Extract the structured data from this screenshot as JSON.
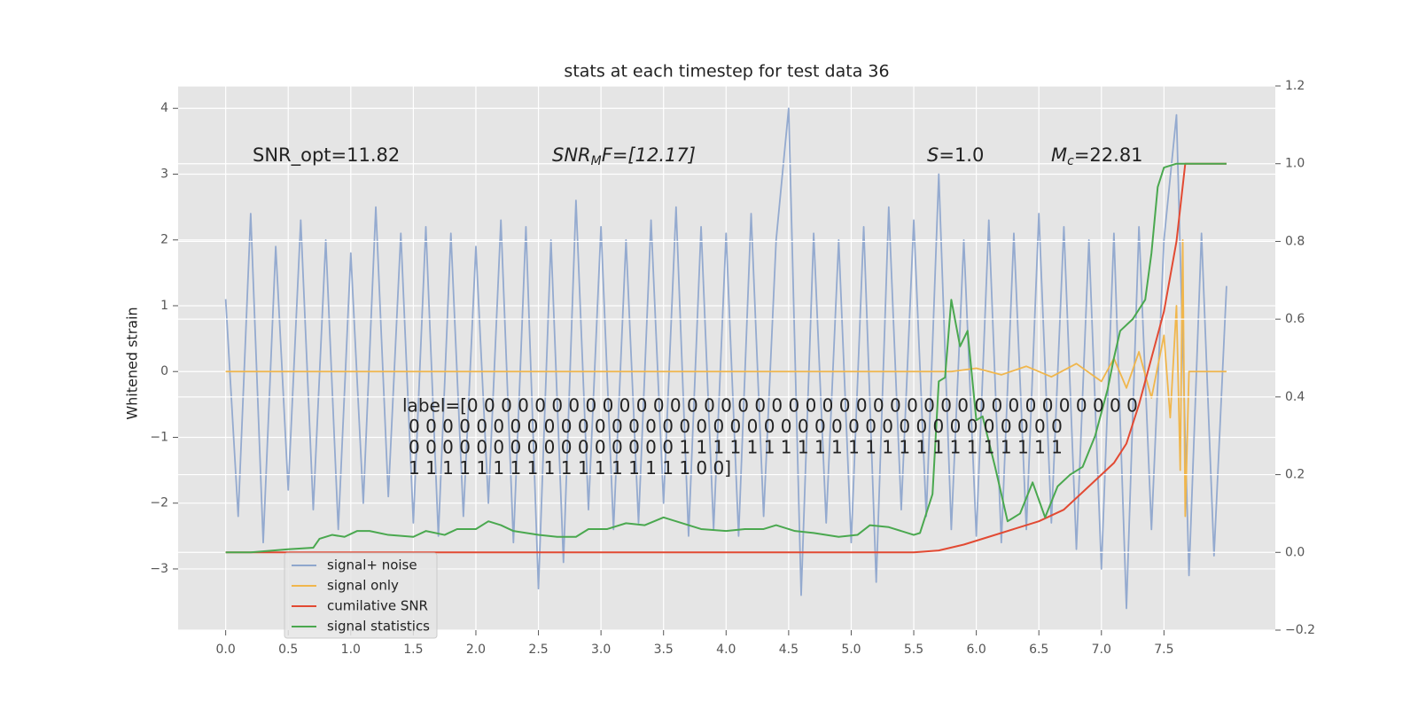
{
  "chart_data": {
    "type": "line",
    "title": "stats at each timestep for test data 36",
    "y_label": "Whitened strain",
    "grid": true,
    "legend": "lower left",
    "xlim": [
      -0.38,
      8.39
    ],
    "xticks": [
      {
        "value": 0,
        "label": "0.0"
      },
      0.5,
      {
        "value": 1,
        "label": "1.0"
      },
      1.5,
      {
        "value": 2,
        "label": "2.0"
      },
      2.5,
      {
        "value": 3,
        "label": "3.0"
      },
      3.5,
      {
        "value": 4,
        "label": "4.0"
      },
      4.5,
      {
        "value": 5,
        "label": "5.0"
      },
      5.5,
      {
        "value": 6,
        "label": "6.0"
      },
      6.5,
      {
        "value": 7,
        "label": "7.0"
      },
      7.5
    ],
    "ylim": [
      -3.93,
      4.34
    ],
    "yticks": [
      {
        "value": -3,
        "label": "−3"
      },
      {
        "value": -2,
        "label": "−2"
      },
      {
        "value": -1,
        "label": "−1"
      },
      0,
      1,
      2,
      3,
      4
    ],
    "y2lim": [
      -0.2,
      1.2
    ],
    "y2ticks": [
      {
        "value": -0.2,
        "label": "−0.2"
      },
      {
        "value": 0,
        "label": "0.0"
      },
      0.2,
      0.4,
      0.6,
      0.8,
      {
        "value": 1,
        "label": "1.0"
      },
      1.2
    ],
    "annotations": {
      "snr_opt": "SNR_opt=11.82",
      "snr_mf": {
        "base": "SNR",
        "sub": "M",
        "rest": "F=[12.17]"
      },
      "s": {
        "base": "S",
        "rest": "=1.0"
      },
      "m_c": {
        "base": "M",
        "sub": "c",
        "rest": "=22.81"
      },
      "label_lines": [
        "label=[0 0 0 0 0 0 0 0 0 0 0 0 0 0 0 0 0 0 0 0 0 0 0 0 0 0 0 0 0 0 0 0 0 0 0 0 0 0 0 0",
        "0 0 0 0 0 0 0 0 0 0 0 0 0 0 0 0 0 0 0 0 0 0 0 0 0 0 0 0 0 0 0 0 0 0 0 0 0 0 0",
        "0 0 0 0 0 0 0 0 0 0 0 0 0 0 0 0 1 1 1 1 1 1 1 1 1 1 1 1 1 1 1 1 1 1 1 1 1 1 1",
        "1 1 1 1 1 1 1 1 1 1 1 1 1 1 1 1 1 0 0]"
      ]
    },
    "series": [
      {
        "name": "signal+ noise",
        "color": "#8fa7cd",
        "axis": "y",
        "x": [
          0.0,
          0.1,
          0.2,
          0.3,
          0.4,
          0.5,
          0.6,
          0.7,
          0.8,
          0.9,
          1.0,
          1.1,
          1.2,
          1.3,
          1.4,
          1.5,
          1.6,
          1.7,
          1.8,
          1.9,
          2.0,
          2.1,
          2.2,
          2.3,
          2.4,
          2.5,
          2.6,
          2.7,
          2.8,
          2.9,
          3.0,
          3.1,
          3.2,
          3.3,
          3.4,
          3.5,
          3.6,
          3.7,
          3.8,
          3.9,
          4.0,
          4.1,
          4.2,
          4.3,
          4.4,
          4.5,
          4.6,
          4.7,
          4.8,
          4.9,
          5.0,
          5.1,
          5.2,
          5.3,
          5.4,
          5.5,
          5.6,
          5.7,
          5.8,
          5.9,
          6.0,
          6.1,
          6.2,
          6.3,
          6.4,
          6.5,
          6.6,
          6.7,
          6.8,
          6.9,
          7.0,
          7.1,
          7.2,
          7.3,
          7.4,
          7.5,
          7.6,
          7.7,
          7.8,
          7.9,
          8.0
        ],
        "values": [
          1.1,
          -2.2,
          2.4,
          -2.6,
          1.9,
          -1.8,
          2.3,
          -2.1,
          2.0,
          -2.4,
          1.8,
          -2.0,
          2.5,
          -1.9,
          2.1,
          -2.3,
          2.2,
          -2.5,
          2.1,
          -2.2,
          1.9,
          -2.0,
          2.3,
          -2.6,
          2.2,
          -3.3,
          2.0,
          -2.9,
          2.6,
          -2.1,
          2.2,
          -2.4,
          2.0,
          -2.3,
          2.3,
          -2.0,
          2.5,
          -2.5,
          2.2,
          -2.4,
          2.1,
          -2.5,
          2.4,
          -2.2,
          2.0,
          4.0,
          -3.4,
          2.1,
          -2.3,
          2.0,
          -2.6,
          2.2,
          -3.2,
          2.5,
          -2.1,
          2.3,
          -2.2,
          3.0,
          -2.4,
          2.0,
          -2.5,
          2.3,
          -2.6,
          2.1,
          -2.4,
          2.4,
          -2.3,
          2.2,
          -2.7,
          2.0,
          -3.0,
          2.1,
          -3.6,
          2.2,
          -2.4,
          2.0,
          3.9,
          -3.1,
          2.1,
          -2.8,
          1.3
        ]
      },
      {
        "name": "signal only",
        "color": "#f0b64c",
        "axis": "y",
        "x": [
          0,
          5.8,
          6.0,
          6.2,
          6.4,
          6.6,
          6.8,
          7.0,
          7.1,
          7.2,
          7.3,
          7.4,
          7.5,
          7.55,
          7.6,
          7.63,
          7.65,
          7.67,
          7.7,
          8.0
        ],
        "values": [
          0,
          0,
          0.05,
          -0.05,
          0.08,
          -0.08,
          0.12,
          -0.15,
          0.2,
          -0.25,
          0.3,
          -0.4,
          0.55,
          -0.7,
          1.0,
          -1.5,
          2.0,
          -2.2,
          0,
          0
        ]
      },
      {
        "name": "cumilative SNR",
        "color": "#e24a33",
        "axis": "y2",
        "x": [
          0,
          5.5,
          5.7,
          5.9,
          6.1,
          6.3,
          6.5,
          6.7,
          6.9,
          7.1,
          7.2,
          7.3,
          7.4,
          7.5,
          7.6,
          7.67,
          8.0
        ],
        "values": [
          0,
          0,
          0.005,
          0.02,
          0.04,
          0.06,
          0.08,
          0.11,
          0.17,
          0.23,
          0.28,
          0.38,
          0.5,
          0.62,
          0.8,
          1.0,
          1.0
        ]
      },
      {
        "name": "signal statistics",
        "color": "#4aa84f",
        "axis": "y2",
        "x": [
          0,
          0.2,
          0.5,
          0.7,
          0.75,
          0.85,
          0.95,
          1.05,
          1.15,
          1.3,
          1.5,
          1.6,
          1.75,
          1.85,
          2.0,
          2.1,
          2.2,
          2.3,
          2.5,
          2.65,
          2.8,
          2.9,
          3.05,
          3.2,
          3.35,
          3.5,
          3.6,
          3.8,
          4.0,
          4.15,
          4.3,
          4.4,
          4.55,
          4.7,
          4.9,
          5.05,
          5.15,
          5.3,
          5.5,
          5.55,
          5.65,
          5.7,
          5.75,
          5.8,
          5.87,
          5.93,
          6.0,
          6.05,
          6.15,
          6.25,
          6.35,
          6.45,
          6.55,
          6.65,
          6.75,
          6.85,
          6.95,
          7.05,
          7.1,
          7.15,
          7.25,
          7.35,
          7.4,
          7.45,
          7.5,
          7.6,
          8.0
        ],
        "values": [
          0,
          0,
          0.008,
          0.012,
          0.035,
          0.045,
          0.04,
          0.055,
          0.055,
          0.045,
          0.04,
          0.055,
          0.045,
          0.06,
          0.06,
          0.08,
          0.07,
          0.055,
          0.045,
          0.04,
          0.04,
          0.06,
          0.06,
          0.075,
          0.07,
          0.09,
          0.08,
          0.06,
          0.055,
          0.06,
          0.06,
          0.07,
          0.055,
          0.05,
          0.04,
          0.045,
          0.07,
          0.065,
          0.045,
          0.05,
          0.15,
          0.44,
          0.45,
          0.65,
          0.53,
          0.57,
          0.34,
          0.35,
          0.22,
          0.08,
          0.1,
          0.18,
          0.09,
          0.17,
          0.2,
          0.22,
          0.3,
          0.42,
          0.5,
          0.57,
          0.6,
          0.65,
          0.77,
          0.94,
          0.99,
          1.0,
          1.0
        ]
      }
    ]
  }
}
